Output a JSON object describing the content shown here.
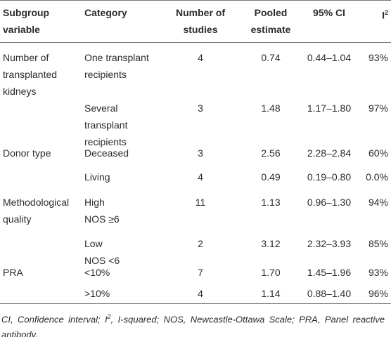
{
  "table": {
    "header": [
      [
        "Subgroup",
        "variable"
      ],
      "Category",
      [
        "Number of",
        "studies"
      ],
      [
        "Pooled",
        "estimate"
      ],
      "95% CI",
      {
        "text": "I",
        "sup": "2"
      }
    ],
    "rows": [
      [
        [
          "Number of",
          "transplanted",
          "kidneys"
        ],
        [
          "One transplant",
          "recipients"
        ],
        "4",
        "0.74",
        "0.44–1.04",
        "93%"
      ],
      [
        null,
        [
          "Several",
          "transplant",
          "recipients"
        ],
        "3",
        "1.48",
        "1.17–1.80",
        "97%"
      ],
      [
        "Donor type",
        "Deceased",
        "3",
        "2.56",
        "2.28–2.84",
        "60%"
      ],
      [
        null,
        "Living",
        "4",
        "0.49",
        "0.19–0.80",
        "0.0%"
      ],
      [
        [
          "Methodological",
          "quality"
        ],
        [
          "High",
          "NOS ≥6"
        ],
        "11",
        "1.13",
        "0.96–1.30",
        "94%"
      ],
      [
        null,
        [
          "Low",
          "NOS <6"
        ],
        "2",
        "3.12",
        "2.32–3.93",
        "85%"
      ],
      [
        "PRA",
        "<10%",
        "7",
        "1.70",
        "1.45–1.96",
        "93%"
      ],
      [
        null,
        ">10%",
        "4",
        "1.14",
        "0.88–1.40",
        "96%"
      ]
    ],
    "footnote": [
      "CI, Confidence interval; I",
      "2",
      ", I-squared; NOS, Newcastle-Ottawa Scale; PRA, Panel reactive antibody."
    ]
  }
}
